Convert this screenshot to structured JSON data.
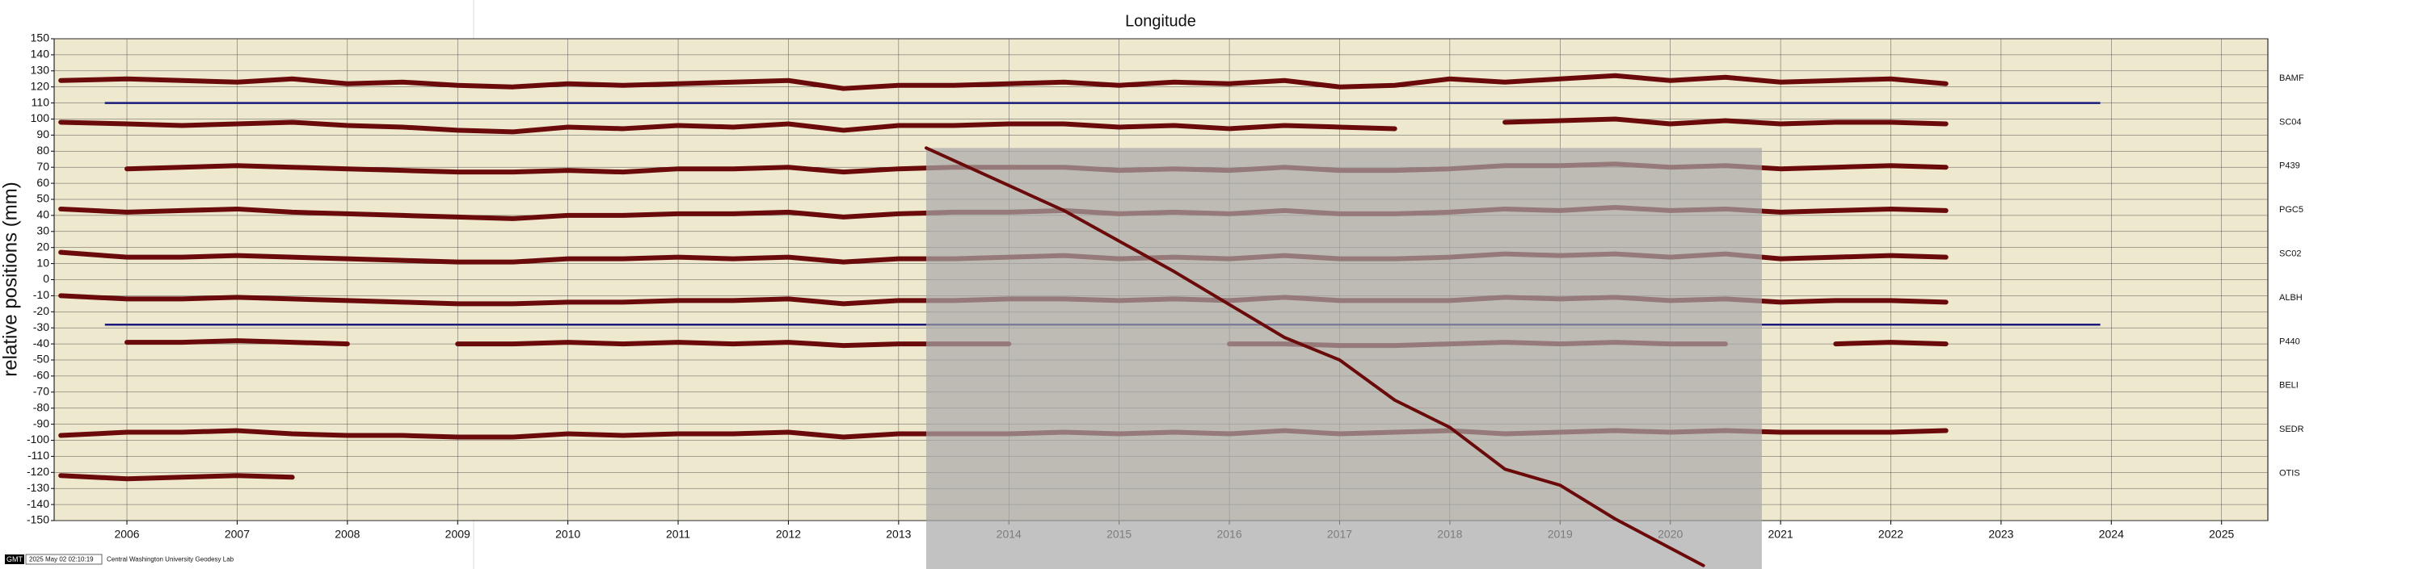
{
  "chart_data": {
    "type": "line",
    "title": "Longitude",
    "ylabel": "relative positions (mm)",
    "footer": {
      "logo": "GMT",
      "timestamp": "2025 May 02 02:10:19",
      "credit": "Central Washington University Geodesy Lab"
    },
    "xlim": [
      2005.84,
      2025.92
    ],
    "ylim": [
      -150,
      150
    ],
    "xticks": [
      {
        "value": 2006.5,
        "label": "2006"
      },
      {
        "value": 2007.5,
        "label": "2007"
      },
      {
        "value": 2008.5,
        "label": "2008"
      },
      {
        "value": 2009.5,
        "label": "2009"
      },
      {
        "value": 2010.5,
        "label": "2010"
      },
      {
        "value": 2011.5,
        "label": "2011"
      },
      {
        "value": 2012.5,
        "label": "2012"
      },
      {
        "value": 2013.5,
        "label": "2013"
      },
      {
        "value": 2014.5,
        "label": "2014"
      },
      {
        "value": 2015.5,
        "label": "2015"
      },
      {
        "value": 2016.5,
        "label": "2016"
      },
      {
        "value": 2017.5,
        "label": "2017"
      },
      {
        "value": 2018.5,
        "label": "2018"
      },
      {
        "value": 2019.5,
        "label": "2019"
      },
      {
        "value": 2020.5,
        "label": "2020"
      },
      {
        "value": 2021.5,
        "label": "2021"
      },
      {
        "value": 2022.5,
        "label": "2022"
      },
      {
        "value": 2023.5,
        "label": "2023"
      },
      {
        "value": 2024.5,
        "label": "2024"
      },
      {
        "value": 2025.5,
        "label": "2025"
      }
    ],
    "yticks": [
      -150,
      -140,
      -130,
      -120,
      -110,
      -100,
      -90,
      -80,
      -70,
      -60,
      -50,
      -40,
      -30,
      -20,
      -10,
      0,
      10,
      20,
      30,
      40,
      50,
      60,
      70,
      80,
      90,
      100,
      110,
      120,
      130,
      140,
      150
    ],
    "grid": true,
    "x": [
      2005.9,
      2006.5,
      2007.0,
      2007.5,
      2008.0,
      2008.5,
      2009.0,
      2009.5,
      2010.0,
      2010.5,
      2011.0,
      2011.5,
      2012.0,
      2012.5,
      2013.0,
      2013.5,
      2014.0,
      2014.5,
      2015.0,
      2015.5,
      2016.0,
      2016.5,
      2017.0,
      2017.5,
      2018.0,
      2018.5,
      2019.0,
      2019.5,
      2020.0,
      2020.5,
      2021.0,
      2021.5,
      2022.0,
      2022.5,
      2023.0
    ],
    "series": [
      {
        "name": "BAMF",
        "color": "#6b0a0a",
        "values": [
          124,
          125,
          124,
          123,
          125,
          122,
          123,
          121,
          120,
          122,
          121,
          122,
          123,
          124,
          119,
          121,
          121,
          122,
          123,
          121,
          123,
          122,
          124,
          120,
          121,
          125,
          123,
          125,
          127,
          124,
          126,
          123,
          124,
          125,
          122
        ]
      },
      {
        "name": "SC04",
        "color": "#6b0a0a",
        "values": [
          98,
          97,
          96,
          97,
          98,
          96,
          95,
          93,
          92,
          95,
          94,
          96,
          95,
          97,
          93,
          96,
          96,
          97,
          97,
          95,
          96,
          94,
          96,
          95,
          94,
          null,
          98,
          99,
          100,
          97,
          99,
          97,
          98,
          98,
          97
        ]
      },
      {
        "name": "P439",
        "color": "#6b0a0a",
        "values": [
          null,
          69,
          70,
          71,
          70,
          69,
          68,
          67,
          67,
          68,
          67,
          69,
          69,
          70,
          67,
          69,
          70,
          70,
          70,
          68,
          69,
          68,
          70,
          68,
          68,
          69,
          71,
          71,
          72,
          70,
          71,
          69,
          70,
          71,
          70
        ]
      },
      {
        "name": "PGC5",
        "color": "#6b0a0a",
        "values": [
          44,
          42,
          43,
          44,
          42,
          41,
          40,
          39,
          38,
          40,
          40,
          41,
          41,
          42,
          39,
          41,
          42,
          42,
          43,
          41,
          42,
          41,
          43,
          41,
          41,
          42,
          44,
          43,
          45,
          43,
          44,
          42,
          43,
          44,
          43
        ]
      },
      {
        "name": "SC02",
        "color": "#6b0a0a",
        "values": [
          17,
          14,
          14,
          15,
          14,
          13,
          12,
          11,
          11,
          13,
          13,
          14,
          13,
          14,
          11,
          13,
          13,
          14,
          15,
          13,
          14,
          13,
          15,
          13,
          13,
          14,
          16,
          15,
          16,
          14,
          16,
          13,
          14,
          15,
          14
        ]
      },
      {
        "name": "ALBH",
        "color": "#6b0a0a",
        "values": [
          -10,
          -12,
          -12,
          -11,
          -12,
          -13,
          -14,
          -15,
          -15,
          -14,
          -14,
          -13,
          -13,
          -12,
          -15,
          -13,
          -13,
          -12,
          -12,
          -13,
          -12,
          -13,
          -11,
          -13,
          -13,
          -13,
          -11,
          -12,
          -11,
          -13,
          -12,
          -14,
          -13,
          -13,
          -14
        ]
      },
      {
        "name": "P440",
        "color": "#6b0a0a",
        "values": [
          null,
          -39,
          -39,
          -38,
          -39,
          -40,
          null,
          -40,
          -40,
          -39,
          -40,
          -39,
          -40,
          -39,
          -41,
          -40,
          -40,
          -40,
          null,
          null,
          null,
          -40,
          -40,
          -41,
          -41,
          -40,
          -39,
          -40,
          -39,
          -40,
          -40,
          null,
          -40,
          -39,
          -40
        ]
      },
      {
        "name": "BELI",
        "color": "#6b0a0a",
        "values": [
          null,
          null,
          null,
          null,
          null,
          null,
          null,
          null,
          null,
          null,
          null,
          null,
          null,
          null,
          null,
          null,
          null,
          null,
          null,
          null,
          null,
          null,
          null,
          null,
          null,
          null,
          null,
          null,
          null,
          null,
          null,
          null,
          null,
          null,
          null
        ]
      },
      {
        "name": "SEDR",
        "color": "#6b0a0a",
        "values": [
          -97,
          -95,
          -95,
          -94,
          -96,
          -97,
          -97,
          -98,
          -98,
          -96,
          -97,
          -96,
          -96,
          -95,
          -98,
          -96,
          -96,
          -96,
          -95,
          -96,
          -95,
          -96,
          -94,
          -96,
          -95,
          -94,
          -96,
          -95,
          -94,
          -95,
          -94,
          -95,
          -95,
          -95,
          -94
        ]
      },
      {
        "name": "OTIS",
        "color": "#6b0a0a",
        "values": [
          -122,
          -124,
          -123,
          -122,
          -123,
          null,
          null,
          null,
          null,
          null,
          null,
          null,
          null,
          null,
          null,
          null,
          null,
          null,
          null,
          null,
          null,
          null,
          null,
          null,
          null,
          null,
          null,
          null,
          null,
          null,
          null,
          null,
          null,
          null,
          null
        ]
      }
    ],
    "trend": {
      "color": "#6b0a0a",
      "x": [
        2013.75,
        2015.0,
        2016.0,
        2017.0,
        2017.5,
        2018.0,
        2018.5,
        2019.0,
        2019.5,
        2020.0,
        2020.8
      ],
      "values": [
        82,
        43,
        5,
        -36,
        -50,
        -75,
        -92,
        -118,
        -128,
        -149,
        -178
      ]
    },
    "shaded_region": {
      "x": [
        2013.75,
        2021.33
      ],
      "y_top": 82,
      "color": "#a8a8a8"
    },
    "reference_lines": [
      {
        "y": 110,
        "x": [
          2006.3,
          2024.4
        ]
      },
      {
        "y": -28,
        "x": [
          2006.3,
          2024.4
        ]
      }
    ],
    "reference_color": "#1a1a7a",
    "plot_background": "#eee8cf"
  }
}
